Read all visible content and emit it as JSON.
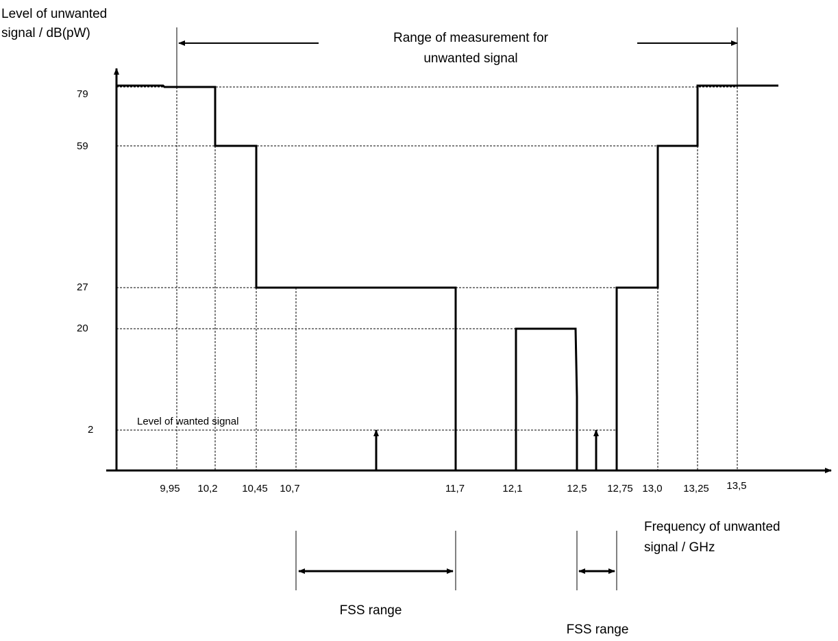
{
  "y_axis_label": [
    "Level of unwanted",
    "signal / dB(pW)"
  ],
  "x_axis_label": [
    "Frequency of unwanted",
    "signal / GHz"
  ],
  "range_label": [
    "Range of measurement for",
    "unwanted signal"
  ],
  "wanted_label": "Level of wanted signal",
  "fss_labels": [
    "FSS range",
    "FSS range"
  ],
  "chart_data": {
    "type": "line",
    "x_ticks": [
      "9,95",
      "10,2",
      "10,45",
      "10,7",
      "11,7",
      "12,1",
      "12,5",
      "12,75",
      "13,0",
      "13,25",
      "13,5"
    ],
    "y_ticks": [
      "79",
      "59",
      "27",
      "20",
      "2"
    ],
    "mask": [
      {
        "from": "9,95",
        "to": "10,2",
        "level": 79
      },
      {
        "from": "10,2",
        "to": "10,45",
        "level": 59
      },
      {
        "from": "10,45",
        "to": "11,7",
        "level": 27
      },
      {
        "from": "12,1",
        "to": "12,5",
        "level": 20
      },
      {
        "from": "12,75",
        "to": "13,0",
        "level": 27
      },
      {
        "from": "13,0",
        "to": "13,25",
        "level": 59
      },
      {
        "from": "13,25",
        "to": "13,5",
        "level": 79
      }
    ],
    "measurement_range": [
      "9,95",
      "13,5"
    ],
    "fss_ranges": [
      [
        "10,7",
        "11,7"
      ],
      [
        "12,5",
        "12,75"
      ]
    ],
    "wanted_level": 2
  }
}
